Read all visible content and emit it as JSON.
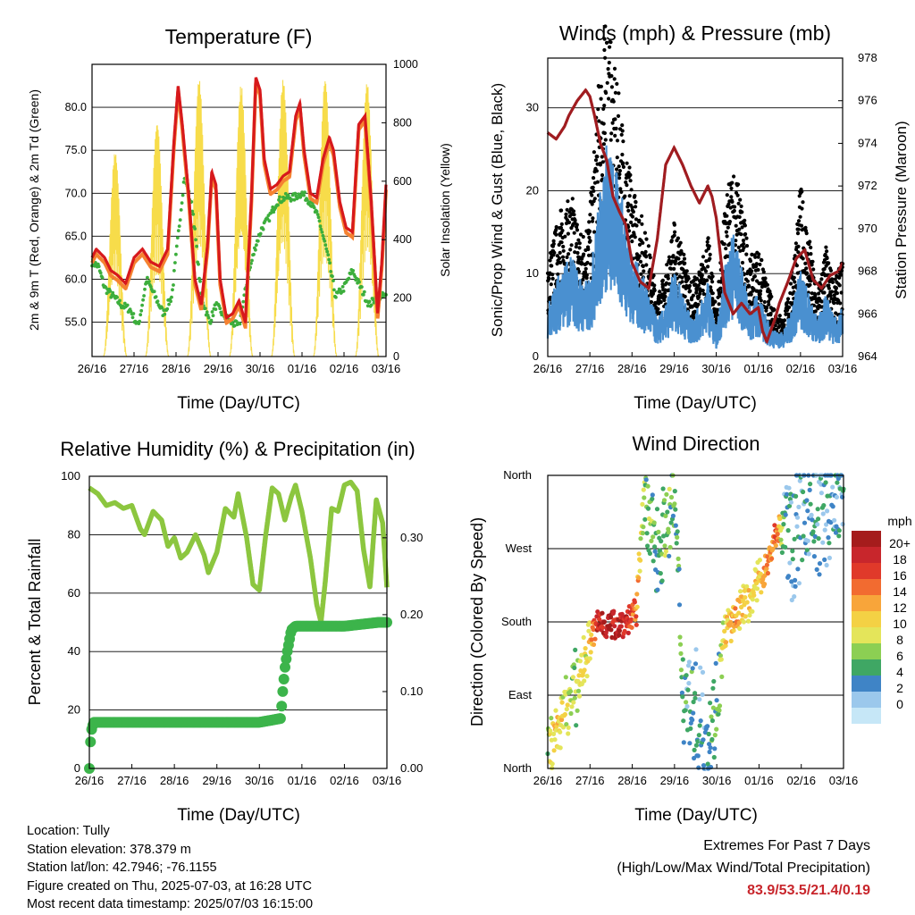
{
  "colors": {
    "temp_2m": "#d7191c",
    "temp_9m": "#f58231",
    "dewpoint": "#3cae3c",
    "solar": "#f7dc4a",
    "wind": "#4a90d0",
    "gust": "#000000",
    "pressure": "#a01c20",
    "rh": "#8cc63f",
    "rain": "#3cb44b",
    "extremes_text": "#c8262c"
  },
  "x_ticks": [
    "26/16",
    "27/16",
    "28/16",
    "29/16",
    "30/16",
    "01/16",
    "02/16",
    "03/16"
  ],
  "footer": {
    "location": "Location: Tully",
    "elevation": "Station elevation: 378.379 m",
    "latlon": "Station lat/lon: 42.7946; -76.1155",
    "created": "Figure created on Thu, 2025-07-03, at 16:28 UTC",
    "recent": "Most recent data timestamp: 2025/07/03 16:15:00",
    "extremes_title": "Extremes For Past 7 Days",
    "extremes_sub": "(High/Low/Max Wind/Total Precipitation)",
    "extremes_values": "83.9/53.5/21.4/0.19"
  },
  "chart_data": [
    {
      "type": "line",
      "title": "Temperature (F)",
      "xlabel": "Time (Day/UTC)",
      "ylabel": "2m & 9m T (Red, Orange) & 2m Td (Green)",
      "ylabel_right": "Solar Insolation (Yellow)",
      "x_days": [
        0,
        7
      ],
      "ylim": [
        51,
        85
      ],
      "yticks": [
        "55.0",
        "60.0",
        "65.0",
        "70.0",
        "75.0",
        "80.0"
      ],
      "ylim_right": [
        0,
        1000
      ],
      "yticks_right": [
        "0",
        "200",
        "400",
        "600",
        "800",
        "1000"
      ],
      "series": [
        {
          "key": "temp",
          "x": [
            0,
            0.1,
            0.3,
            0.45,
            0.6,
            0.8,
            1.0,
            1.2,
            1.4,
            1.6,
            1.8,
            1.95,
            2.05,
            2.15,
            2.3,
            2.45,
            2.6,
            2.75,
            2.85,
            2.95,
            3.05,
            3.2,
            3.35,
            3.5,
            3.65,
            3.8,
            3.9,
            4.0,
            4.1,
            4.25,
            4.4,
            4.55,
            4.7,
            4.85,
            4.95,
            5.05,
            5.2,
            5.35,
            5.5,
            5.65,
            5.75,
            5.9,
            6.05,
            6.2,
            6.35,
            6.5,
            6.65,
            6.8,
            6.9,
            7.0
          ],
          "values": [
            62.5,
            63.5,
            62.5,
            61,
            60.5,
            59.5,
            62.5,
            63.5,
            62,
            61.5,
            63.5,
            76,
            82.5,
            78,
            70,
            60,
            57,
            64,
            72.5,
            71,
            60,
            55.5,
            56,
            57.5,
            55,
            70,
            83.5,
            82,
            74,
            70.5,
            71,
            72,
            72.5,
            79,
            80.5,
            75,
            70,
            69.5,
            74,
            76.5,
            75,
            69,
            66,
            65.5,
            78,
            79,
            69,
            56,
            62,
            71
          ]
        },
        {
          "key": "dewpoint",
          "x": [
            0,
            0.15,
            0.3,
            0.5,
            0.7,
            0.9,
            1.1,
            1.3,
            1.5,
            1.7,
            1.9,
            2.05,
            2.2,
            2.4,
            2.6,
            2.8,
            2.95,
            3.1,
            3.3,
            3.5,
            3.7,
            3.9,
            4.05,
            4.2,
            4.4,
            4.6,
            4.8,
            5.0,
            5.2,
            5.4,
            5.6,
            5.8,
            6.0,
            6.2,
            6.4,
            6.6,
            6.8,
            7.0
          ],
          "values": [
            62,
            61.5,
            59,
            58,
            57,
            56.5,
            54.5,
            60,
            58,
            56,
            58,
            65,
            72,
            68,
            58,
            55,
            57,
            56,
            55,
            54.5,
            60,
            64,
            66,
            67,
            69,
            69.5,
            69.5,
            70,
            69,
            67,
            63,
            58,
            59,
            61,
            59,
            57,
            58,
            58
          ]
        },
        {
          "key": "solar",
          "peaks_day": [
            0.55,
            1.55,
            2.55,
            3.55,
            4.55,
            5.55,
            6.55
          ],
          "peak_values": [
            700,
            800,
            950,
            930,
            950,
            950,
            940
          ]
        }
      ]
    },
    {
      "type": "line",
      "title": "Winds (mph) & Pressure (mb)",
      "xlabel": "Time (Day/UTC)",
      "ylabel": "Sonic/Prop Wind & Gust (Blue, Black)",
      "ylabel_right": "Station Pressure (Maroon)",
      "x_days": [
        0,
        7
      ],
      "ylim": [
        0,
        36
      ],
      "yticks": [
        "0",
        "10",
        "20",
        "30"
      ],
      "ylim_right": [
        964,
        978
      ],
      "yticks_right": [
        "964",
        "966",
        "968",
        "970",
        "972",
        "974",
        "976",
        "978"
      ],
      "series": [
        {
          "key": "wind",
          "x": [
            0,
            0.3,
            0.6,
            0.8,
            1.0,
            1.2,
            1.4,
            1.6,
            1.8,
            2.0,
            2.2,
            2.4,
            2.6,
            2.8,
            3.0,
            3.2,
            3.4,
            3.6,
            3.8,
            4.0,
            4.2,
            4.4,
            4.6,
            4.8,
            5.0,
            5.2,
            5.4,
            5.6,
            5.8,
            6.0,
            6.2,
            6.4,
            6.6,
            6.8,
            7.0
          ],
          "values": [
            4,
            7,
            8,
            6,
            6,
            12,
            17,
            15,
            12,
            8,
            7,
            5,
            3,
            4,
            7,
            5,
            3,
            4,
            6,
            2,
            7,
            10,
            7,
            4,
            5,
            3,
            2,
            2,
            4,
            7,
            5,
            3,
            5,
            3,
            4
          ]
        },
        {
          "key": "gust",
          "x": [
            0,
            0.3,
            0.6,
            0.8,
            1.0,
            1.2,
            1.4,
            1.6,
            1.8,
            2.0,
            2.2,
            2.4,
            2.6,
            2.8,
            3.0,
            3.2,
            3.4,
            3.6,
            3.8,
            4.0,
            4.2,
            4.4,
            4.6,
            4.8,
            5.0,
            5.2,
            5.4,
            5.6,
            5.8,
            6.0,
            6.2,
            6.4,
            6.6,
            6.8,
            7.0
          ],
          "values": [
            8,
            12,
            13,
            10,
            12,
            22,
            28,
            23,
            19,
            14,
            12,
            9,
            5,
            7,
            11,
            9,
            6,
            7,
            10,
            4,
            12,
            16,
            13,
            8,
            9,
            6,
            4,
            3,
            7,
            14,
            10,
            5,
            9,
            6,
            8
          ]
        },
        {
          "key": "pressure",
          "x": [
            0,
            0.2,
            0.4,
            0.5,
            0.7,
            0.9,
            1.0,
            1.1,
            1.25,
            1.4,
            1.55,
            1.7,
            1.85,
            2.0,
            2.2,
            2.4,
            2.6,
            2.8,
            3.0,
            3.2,
            3.4,
            3.6,
            3.8,
            3.9,
            4.0,
            4.2,
            4.4,
            4.6,
            4.8,
            5.0,
            5.1,
            5.2,
            5.4,
            5.5,
            5.7,
            5.9,
            6.1,
            6.3,
            6.5,
            6.7,
            6.9,
            7.0
          ],
          "values": [
            974.5,
            974.2,
            974.8,
            975.3,
            976,
            976.5,
            976.2,
            975.4,
            974,
            973.2,
            971.5,
            970.8,
            970.2,
            968.4,
            967.5,
            967.2,
            969.5,
            973,
            973.8,
            973,
            972,
            971.2,
            972,
            971.5,
            970.5,
            967,
            966,
            966.5,
            966,
            966.3,
            965.2,
            964.7,
            965.8,
            966.5,
            967.5,
            968.6,
            969,
            967.6,
            967.2,
            967.8,
            968,
            968.4
          ]
        }
      ]
    },
    {
      "type": "line",
      "title": "Relative Humidity (%) & Precipitation (in)",
      "xlabel": "Time (Day/UTC)",
      "ylabel": "Percent & Total Rainfall",
      "x_days": [
        0,
        7
      ],
      "ylim": [
        0,
        100
      ],
      "yticks": [
        "0",
        "20",
        "40",
        "60",
        "80",
        "100"
      ],
      "ylim_right": [
        0,
        0.38
      ],
      "yticks_right": [
        "0.00",
        "0.10",
        "0.20",
        "0.30"
      ],
      "series": [
        {
          "key": "rh",
          "x": [
            0,
            0.2,
            0.4,
            0.6,
            0.8,
            1.0,
            1.2,
            1.3,
            1.5,
            1.7,
            1.85,
            2.0,
            2.15,
            2.3,
            2.5,
            2.7,
            2.8,
            3.0,
            3.2,
            3.4,
            3.5,
            3.7,
            3.85,
            4.0,
            4.15,
            4.3,
            4.45,
            4.6,
            4.75,
            4.85,
            5.0,
            5.2,
            5.35,
            5.45,
            5.55,
            5.7,
            5.85,
            6.0,
            6.15,
            6.3,
            6.45,
            6.6,
            6.75,
            6.9,
            7.0
          ],
          "values": [
            96,
            94,
            90,
            91,
            89,
            90,
            82,
            80,
            88,
            85,
            76,
            79,
            72,
            74,
            80,
            73,
            67,
            74,
            89,
            86,
            94,
            79,
            63,
            61,
            80,
            96,
            94,
            85,
            93,
            97,
            88,
            72,
            56,
            50,
            64,
            89,
            88,
            97,
            98,
            95,
            75,
            62,
            92,
            84,
            62
          ]
        },
        {
          "key": "rain",
          "x": [
            0,
            0.02,
            0.05,
            0.1,
            1,
            2,
            3,
            4,
            4.5,
            4.55,
            4.6,
            4.65,
            4.75,
            4.85,
            5,
            6,
            6.8,
            7.0
          ],
          "values": [
            0,
            0.03,
            0.05,
            0.06,
            0.06,
            0.06,
            0.06,
            0.06,
            0.065,
            0.1,
            0.13,
            0.15,
            0.18,
            0.185,
            0.185,
            0.185,
            0.19,
            0.19
          ]
        }
      ]
    },
    {
      "type": "scatter",
      "title": "Wind Direction",
      "xlabel": "Time (Day/UTC)",
      "ylabel": "Direction (Colored By Speed)",
      "x_days": [
        0,
        7
      ],
      "ylim": [
        0,
        360
      ],
      "yticks": [
        "North",
        "East",
        "South",
        "West",
        "North"
      ],
      "legend": {
        "title": "mph",
        "labels": [
          "20+",
          "18",
          "16",
          "14",
          "12",
          "10",
          "8",
          "6",
          "4",
          "2",
          "0"
        ],
        "colors": [
          "#a51c1c",
          "#c8262c",
          "#e0392a",
          "#f26b30",
          "#f8a53a",
          "#f4d144",
          "#e4e55a",
          "#8ccf53",
          "#3fa764",
          "#3f84c6",
          "#9bc8ec",
          "#c6e7f7"
        ]
      },
      "series": [
        {
          "key": "direction_track",
          "x": [
            0,
            0.2,
            0.4,
            0.6,
            0.8,
            1.0,
            1.2,
            1.5,
            1.8,
            2.1,
            2.25,
            2.4,
            2.6,
            2.8,
            3.0,
            3.2,
            3.4,
            3.6,
            3.8,
            4.0,
            4.2,
            4.4,
            4.6,
            4.8,
            5.0,
            5.2,
            5.4,
            5.6,
            5.8,
            6.0,
            6.2,
            6.4,
            6.6,
            6.8,
            7.0
          ],
          "values": [
            20,
            45,
            70,
            90,
            120,
            155,
            180,
            175,
            180,
            190,
            330,
            300,
            270,
            300,
            330,
            100,
            80,
            60,
            40,
            80,
            170,
            180,
            200,
            210,
            230,
            250,
            290,
            300,
            280,
            310,
            320,
            300,
            320,
            330,
            340
          ],
          "speeds": [
            6,
            10,
            8,
            6,
            8,
            10,
            18,
            19,
            18,
            14,
            6,
            5,
            4,
            5,
            4,
            3,
            3,
            2,
            3,
            4,
            9,
            12,
            10,
            9,
            10,
            12,
            14,
            3,
            2,
            2,
            2,
            2,
            2,
            2,
            3
          ]
        }
      ]
    }
  ]
}
